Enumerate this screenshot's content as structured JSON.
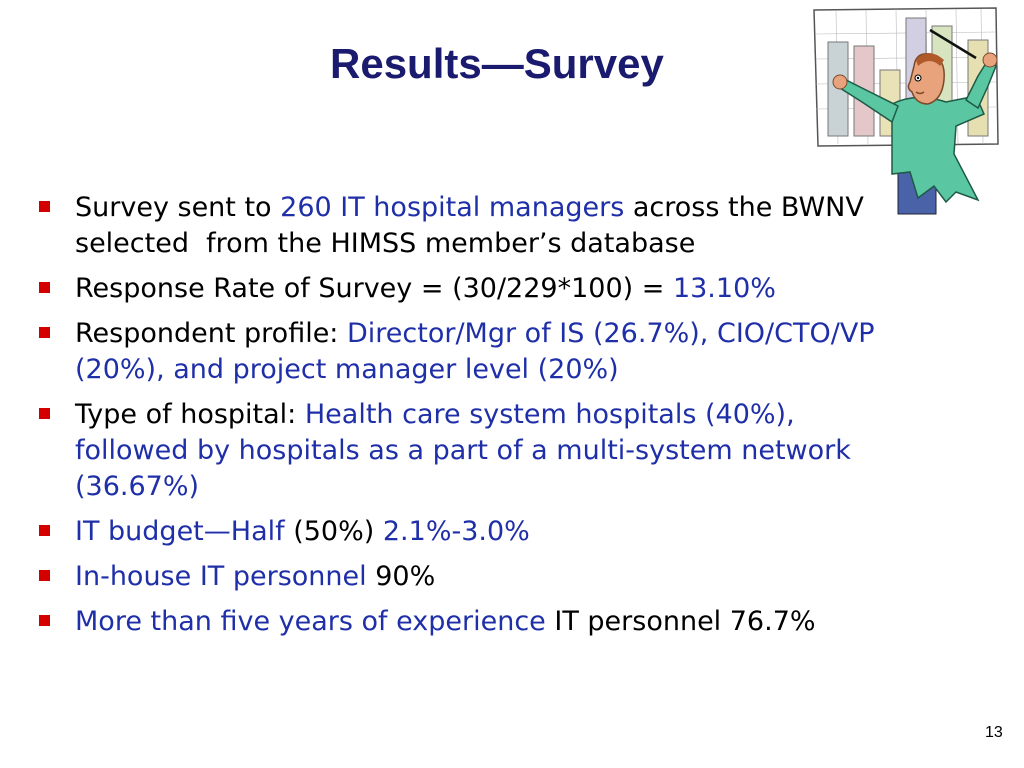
{
  "slide": {
    "title": "Results—Survey",
    "page_number": "13"
  },
  "illustration": "man-pointing-at-bar-chart-clipart",
  "colors": {
    "title": "#1a1a6e",
    "highlight": "#1f2fa8",
    "bullet": "#d40000",
    "text": "#000000"
  },
  "bullets": [
    {
      "seg1": "Survey sent to ",
      "seg2": "260 IT hospital managers",
      "seg3": " across the BWNV selected  from the HIMSS member’s database"
    },
    {
      "seg1": "Response Rate of Survey = (30/229*100) = ",
      "seg2": "13.10%"
    },
    {
      "seg1": "Respondent profile: ",
      "seg2": "Director/Mgr of IS (26.7%), CIO/CTO/VP (20%), and project manager level (20%)"
    },
    {
      "seg1": "Type of hospital: ",
      "seg2": "Health care system hospitals (40%), followed by hospitals as a part of a multi-system network (36.67%)"
    },
    {
      "seg1": "IT budget—Half",
      "seg2": " (50%) ",
      "seg3": "2.1%-3.0%"
    },
    {
      "seg1": "In-house IT personnel",
      "seg2": " 90%"
    },
    {
      "seg1": "More than five years of experience",
      "seg2": " IT personnel 76.7%"
    }
  ]
}
